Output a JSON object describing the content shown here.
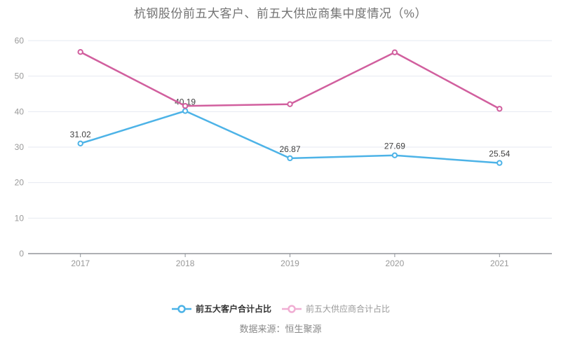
{
  "title": "杭钢股份前五大客户、前五大供应商集中度情况（%）",
  "source": "数据来源：恒生聚源",
  "legend": {
    "items": [
      "前五大客户合计占比",
      "前五大供应商合计占比"
    ]
  },
  "chart_data": {
    "type": "line",
    "title": "杭钢股份前五大客户、前五大供应商集中度情况（%）",
    "categories": [
      "2017",
      "2018",
      "2019",
      "2020",
      "2021"
    ],
    "series": [
      {
        "name": "前五大客户合计占比",
        "values": [
          31.02,
          40.19,
          26.87,
          27.69,
          25.54
        ],
        "color": "#4db3e7",
        "show_labels": true,
        "labels": [
          "31.02",
          "40.19",
          "26.87",
          "27.69",
          "25.54"
        ],
        "legend_marker_color": "#4db3e7",
        "legend_text_color": "#333333",
        "legend_bold": true
      },
      {
        "name": "前五大供应商合计占比",
        "values": [
          56.8,
          41.6,
          42.1,
          56.7,
          40.8
        ],
        "color": "#d15f9e",
        "show_labels": false,
        "labels": [],
        "legend_marker_color": "#f0aed3",
        "legend_text_color": "#999999",
        "legend_bold": false
      }
    ],
    "xlabel": "",
    "ylabel": "",
    "ylim": [
      0,
      60
    ],
    "y_ticks": [
      0,
      10,
      20,
      30,
      40,
      50,
      60
    ],
    "grid": true,
    "legend_position": "bottom"
  },
  "colors": {
    "background": "#ffffff",
    "grid_line": "#e6e9f1",
    "axis_line": "#5c6069",
    "axis_tick": "#8f9399",
    "axis_text": "#999999",
    "data_label_text": "#404040",
    "title_text": "#737373",
    "source_text": "#888888",
    "marker_fill": "#ffffff"
  }
}
